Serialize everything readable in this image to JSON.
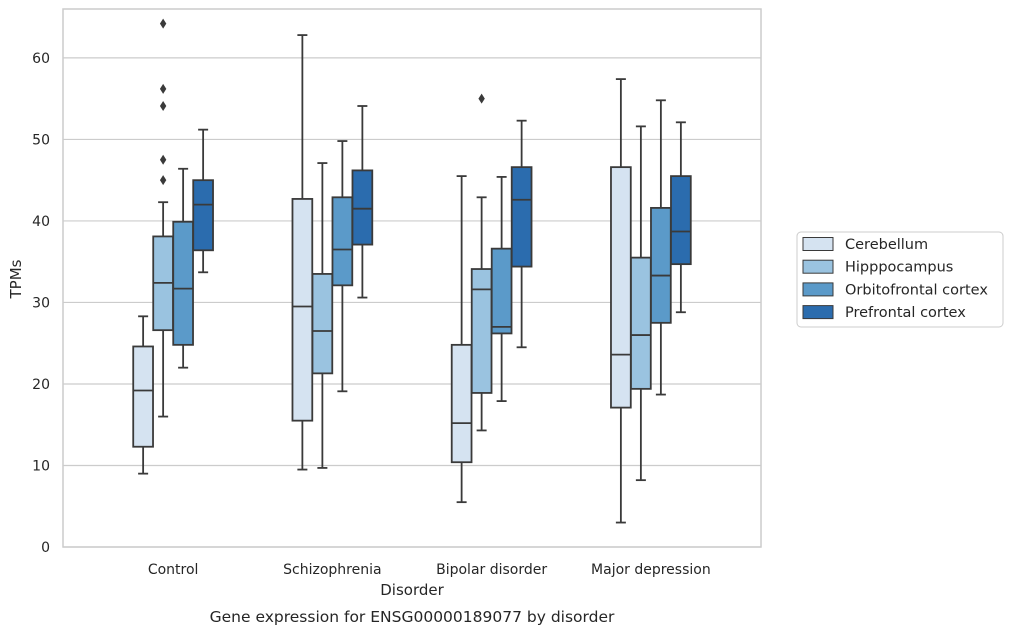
{
  "chart_data": {
    "type": "box",
    "xlabel": "Disorder",
    "ylabel": "TPMs",
    "caption": "Gene expression for ENSG00000189077 by disorder",
    "ylim": [
      0,
      66
    ],
    "yticks": [
      0,
      10,
      20,
      30,
      40,
      50,
      60
    ],
    "grid": "horizontal",
    "legend_position": "right",
    "categories": [
      "Control",
      "Schizophrenia",
      "Bipolar disorder",
      "Major depression"
    ],
    "series": [
      {
        "name": "Cerebellum",
        "color": "#d5e3f1",
        "boxes": [
          {
            "whisker_low": 9.0,
            "q1": 12.3,
            "median": 19.2,
            "q3": 24.6,
            "whisker_high": 28.3,
            "outliers": []
          },
          {
            "whisker_low": 9.5,
            "q1": 15.5,
            "median": 29.5,
            "q3": 42.7,
            "whisker_high": 62.8,
            "outliers": []
          },
          {
            "whisker_low": 5.5,
            "q1": 10.4,
            "median": 15.2,
            "q3": 24.8,
            "whisker_high": 45.5,
            "outliers": []
          },
          {
            "whisker_low": 3.0,
            "q1": 17.1,
            "median": 23.6,
            "q3": 46.6,
            "whisker_high": 57.4,
            "outliers": []
          }
        ]
      },
      {
        "name": "Hipppocampus",
        "color": "#9ac3e0",
        "boxes": [
          {
            "whisker_low": 16.0,
            "q1": 26.6,
            "median": 32.4,
            "q3": 38.1,
            "whisker_high": 42.3,
            "outliers": [
              45.0,
              47.5,
              54.1,
              56.2,
              64.2
            ]
          },
          {
            "whisker_low": 9.7,
            "q1": 21.3,
            "median": 26.5,
            "q3": 33.5,
            "whisker_high": 47.1,
            "outliers": []
          },
          {
            "whisker_low": 14.3,
            "q1": 18.9,
            "median": 31.6,
            "q3": 34.1,
            "whisker_high": 42.9,
            "outliers": [
              55.0
            ]
          },
          {
            "whisker_low": 8.2,
            "q1": 19.4,
            "median": 26.0,
            "q3": 35.5,
            "whisker_high": 51.6,
            "outliers": []
          }
        ]
      },
      {
        "name": "Orbitofrontal cortex",
        "color": "#5b9ac9",
        "boxes": [
          {
            "whisker_low": 22.0,
            "q1": 24.8,
            "median": 31.7,
            "q3": 39.9,
            "whisker_high": 46.4,
            "outliers": []
          },
          {
            "whisker_low": 19.1,
            "q1": 32.1,
            "median": 36.5,
            "q3": 42.9,
            "whisker_high": 49.8,
            "outliers": []
          },
          {
            "whisker_low": 17.9,
            "q1": 26.2,
            "median": 27.0,
            "q3": 36.6,
            "whisker_high": 45.4,
            "outliers": []
          },
          {
            "whisker_low": 18.7,
            "q1": 27.5,
            "median": 33.3,
            "q3": 41.6,
            "whisker_high": 54.8,
            "outliers": []
          }
        ]
      },
      {
        "name": "Prefrontal cortex",
        "color": "#2b6cae",
        "boxes": [
          {
            "whisker_low": 33.7,
            "q1": 36.4,
            "median": 42.0,
            "q3": 45.0,
            "whisker_high": 51.2,
            "outliers": []
          },
          {
            "whisker_low": 30.6,
            "q1": 37.1,
            "median": 41.5,
            "q3": 46.2,
            "whisker_high": 54.1,
            "outliers": []
          },
          {
            "whisker_low": 24.5,
            "q1": 34.4,
            "median": 42.6,
            "q3": 46.6,
            "whisker_high": 52.3,
            "outliers": []
          },
          {
            "whisker_low": 28.8,
            "q1": 34.7,
            "median": 38.7,
            "q3": 45.5,
            "whisker_high": 52.1,
            "outliers": []
          }
        ]
      }
    ]
  }
}
